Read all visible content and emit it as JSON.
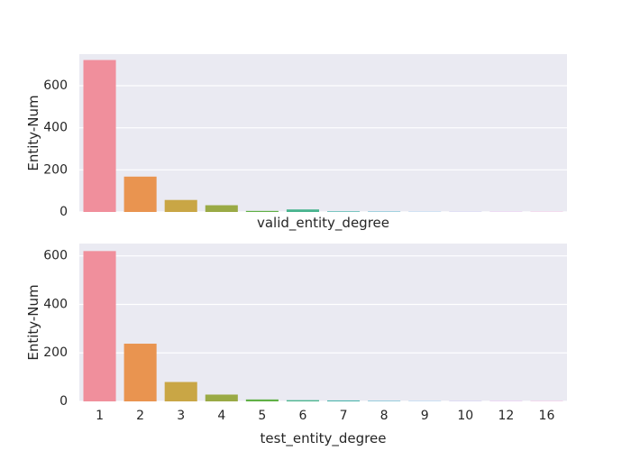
{
  "chart_data": [
    {
      "type": "bar",
      "categories": [
        "1",
        "2",
        "3",
        "4",
        "5",
        "6",
        "7",
        "8",
        "9",
        "10",
        "12",
        "16"
      ],
      "values": [
        722,
        168,
        57,
        32,
        5,
        12,
        3,
        2,
        1,
        1,
        1,
        1
      ],
      "xlabel": "valid_entity_degree",
      "ylabel": "Entity-Num",
      "ylim": [
        0,
        750
      ],
      "yticks": [
        0,
        200,
        400,
        600
      ],
      "show_xtick_labels": false,
      "grid": true
    },
    {
      "type": "bar",
      "categories": [
        "1",
        "2",
        "3",
        "4",
        "5",
        "6",
        "7",
        "8",
        "9",
        "10",
        "12",
        "16"
      ],
      "values": [
        620,
        238,
        80,
        28,
        8,
        5,
        4,
        2,
        1,
        1,
        1,
        1
      ],
      "xlabel": "test_entity_degree",
      "ylabel": "Entity-Num",
      "ylim": [
        0,
        651
      ],
      "yticks": [
        0,
        200,
        400,
        600
      ],
      "show_xtick_labels": true,
      "grid": true
    }
  ],
  "colors": {
    "panel_background": "#EAEAF2",
    "grid": "#FFFFFF",
    "bars": [
      "#F08F9C",
      "#E99450",
      "#C9A645",
      "#9AAA45",
      "#60B046",
      "#48B48E",
      "#4AB4AB",
      "#4DB1C9",
      "#5DA8E6",
      "#A69BEA",
      "#D68BE5",
      "#EE8BCB"
    ]
  }
}
